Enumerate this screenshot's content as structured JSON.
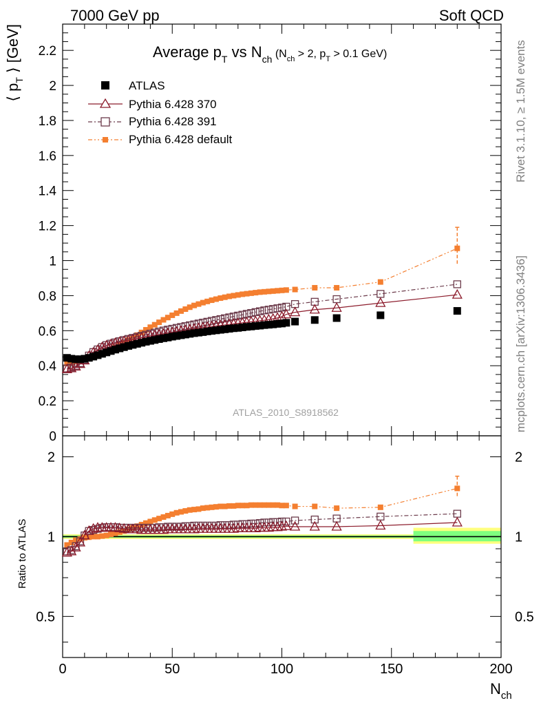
{
  "header": {
    "energy": "7000 GeV pp",
    "category": "Soft QCD"
  },
  "side": {
    "rivet": "Rivet 3.1.10, ≥ 1.5M events",
    "mcplots": "mcplots.cern.ch [arXiv:1306.3436]"
  },
  "watermark": "ATLAS_2010_S8918562",
  "chart_data": [
    {
      "type": "scatter",
      "title": "Average pT vs Nch (Nch > 2, pT > 0.1 GeV)",
      "title_parts": {
        "main": "Average p",
        "sub1": "T",
        "vs": " vs N",
        "sub2": "ch",
        "cond_open": " (N",
        "cond_sub1": "ch",
        "cond_mid": " > 2, p",
        "cond_sub2": "T",
        "cond_close": " > 0.1 GeV)"
      },
      "ylabel": "⟨ pT ⟩ [GeV]",
      "ylabel_parts": {
        "open": "⟨ p",
        "sub": "T",
        "close": " ⟩ [GeV]"
      },
      "xlim": [
        0,
        200
      ],
      "ylim": [
        0,
        2.35
      ],
      "yticks": [
        "0",
        "0.2",
        "0.4",
        "0.6",
        "0.8",
        "1",
        "1.2",
        "1.4",
        "1.6",
        "1.8",
        "2",
        "2.2"
      ],
      "legend_position": "top-left",
      "series": [
        {
          "name": "ATLAS",
          "color": "#000000",
          "marker": "filled-square",
          "x": [
            2,
            4,
            6,
            8,
            10,
            12,
            14,
            16,
            18,
            20,
            22,
            24,
            26,
            28,
            30,
            32,
            34,
            36,
            38,
            40,
            42,
            44,
            46,
            48,
            50,
            52,
            54,
            56,
            58,
            60,
            62,
            64,
            66,
            68,
            70,
            72,
            74,
            76,
            78,
            80,
            82,
            84,
            86,
            88,
            90,
            92,
            94,
            96,
            98,
            100,
            102,
            106,
            115,
            125,
            145,
            180
          ],
          "y": [
            0.445,
            0.44,
            0.437,
            0.437,
            0.44,
            0.445,
            0.452,
            0.46,
            0.468,
            0.476,
            0.484,
            0.492,
            0.499,
            0.506,
            0.513,
            0.519,
            0.525,
            0.531,
            0.537,
            0.542,
            0.547,
            0.552,
            0.557,
            0.561,
            0.566,
            0.57,
            0.574,
            0.578,
            0.582,
            0.586,
            0.589,
            0.592,
            0.596,
            0.599,
            0.602,
            0.605,
            0.608,
            0.611,
            0.614,
            0.616,
            0.619,
            0.622,
            0.624,
            0.627,
            0.629,
            0.632,
            0.634,
            0.636,
            0.639,
            0.641,
            0.645,
            0.652,
            0.661,
            0.672,
            0.688,
            0.713
          ]
        },
        {
          "name": "Pythia 6.428 370",
          "color": "#8b1a2a",
          "marker": "open-triangle",
          "line": "solid",
          "x": [
            2,
            4,
            6,
            8,
            10,
            12,
            14,
            16,
            18,
            20,
            22,
            24,
            26,
            28,
            30,
            32,
            34,
            36,
            38,
            40,
            42,
            44,
            46,
            48,
            50,
            52,
            54,
            56,
            58,
            60,
            62,
            64,
            66,
            68,
            70,
            72,
            74,
            76,
            78,
            80,
            82,
            84,
            86,
            88,
            90,
            92,
            94,
            96,
            98,
            100,
            102,
            106,
            115,
            125,
            145,
            180
          ],
          "y": [
            0.38,
            0.385,
            0.395,
            0.41,
            0.43,
            0.455,
            0.475,
            0.49,
            0.505,
            0.515,
            0.522,
            0.529,
            0.535,
            0.54,
            0.545,
            0.55,
            0.555,
            0.56,
            0.565,
            0.57,
            0.574,
            0.578,
            0.582,
            0.586,
            0.59,
            0.594,
            0.598,
            0.602,
            0.606,
            0.61,
            0.614,
            0.618,
            0.621,
            0.624,
            0.627,
            0.63,
            0.633,
            0.636,
            0.639,
            0.642,
            0.645,
            0.648,
            0.651,
            0.654,
            0.657,
            0.66,
            0.664,
            0.668,
            0.673,
            0.68,
            0.693,
            0.705,
            0.72,
            0.73,
            0.758,
            0.805
          ]
        },
        {
          "name": "Pythia 6.428 391",
          "color": "#6b3a4a",
          "marker": "open-square",
          "line": "dash-dot",
          "x": [
            2,
            4,
            6,
            8,
            10,
            12,
            14,
            16,
            18,
            20,
            22,
            24,
            26,
            28,
            30,
            32,
            34,
            36,
            38,
            40,
            42,
            44,
            46,
            48,
            50,
            52,
            54,
            56,
            58,
            60,
            62,
            64,
            66,
            68,
            70,
            72,
            74,
            76,
            78,
            80,
            82,
            84,
            86,
            88,
            90,
            92,
            94,
            96,
            98,
            100,
            102,
            106,
            115,
            125,
            145,
            180
          ],
          "y": [
            0.385,
            0.39,
            0.4,
            0.415,
            0.435,
            0.458,
            0.478,
            0.493,
            0.507,
            0.518,
            0.526,
            0.533,
            0.54,
            0.547,
            0.553,
            0.559,
            0.565,
            0.571,
            0.577,
            0.583,
            0.589,
            0.595,
            0.601,
            0.606,
            0.611,
            0.616,
            0.621,
            0.626,
            0.631,
            0.636,
            0.641,
            0.646,
            0.651,
            0.656,
            0.661,
            0.666,
            0.671,
            0.676,
            0.681,
            0.686,
            0.691,
            0.696,
            0.701,
            0.706,
            0.711,
            0.716,
            0.72,
            0.724,
            0.728,
            0.732,
            0.737,
            0.752,
            0.765,
            0.78,
            0.81,
            0.865
          ]
        },
        {
          "name": "Pythia 6.428 default",
          "color": "#f47f30",
          "marker": "filled-small-square",
          "line": "dash-dot-dot",
          "x": [
            2,
            4,
            6,
            8,
            10,
            12,
            14,
            16,
            18,
            20,
            22,
            24,
            26,
            28,
            30,
            32,
            34,
            36,
            38,
            40,
            42,
            44,
            46,
            48,
            50,
            52,
            54,
            56,
            58,
            60,
            62,
            64,
            66,
            68,
            70,
            72,
            74,
            76,
            78,
            80,
            82,
            84,
            86,
            88,
            90,
            92,
            94,
            96,
            98,
            100,
            102,
            106,
            115,
            125,
            145,
            180
          ],
          "y": [
            0.415,
            0.42,
            0.425,
            0.428,
            0.435,
            0.442,
            0.45,
            0.46,
            0.47,
            0.48,
            0.492,
            0.505,
            0.518,
            0.532,
            0.546,
            0.56,
            0.575,
            0.59,
            0.605,
            0.62,
            0.634,
            0.648,
            0.662,
            0.675,
            0.688,
            0.7,
            0.712,
            0.723,
            0.734,
            0.744,
            0.752,
            0.76,
            0.767,
            0.774,
            0.78,
            0.786,
            0.791,
            0.796,
            0.8,
            0.804,
            0.808,
            0.811,
            0.814,
            0.817,
            0.82,
            0.822,
            0.824,
            0.826,
            0.828,
            0.83,
            0.832,
            0.835,
            0.845,
            0.845,
            0.878,
            1.07
          ],
          "err_hi": 0.12
        }
      ]
    },
    {
      "type": "scatter",
      "ylabel": "Ratio to ATLAS",
      "xlabel": "Nch",
      "xlabel_parts": {
        "main": "N",
        "sub": "ch"
      },
      "xlim": [
        0,
        200
      ],
      "ylim": [
        0.35,
        2.4
      ],
      "xticks": [
        "0",
        "50",
        "100",
        "150",
        "200"
      ],
      "yticks": [
        {
          "value": 0.5,
          "label": "0.5"
        },
        {
          "value": 1,
          "label": "1"
        },
        {
          "value": 2,
          "label": "2"
        }
      ],
      "band_color_inner": "#7fff7f",
      "band_color_outer": "#ffff7f",
      "series": [
        {
          "name": "Pythia 6.428 370",
          "color": "#8b1a2a",
          "x": [
            2,
            4,
            6,
            8,
            10,
            12,
            14,
            16,
            18,
            20,
            22,
            24,
            26,
            28,
            30,
            32,
            34,
            36,
            38,
            40,
            42,
            44,
            46,
            48,
            50,
            52,
            54,
            56,
            58,
            60,
            62,
            64,
            66,
            68,
            70,
            72,
            74,
            76,
            78,
            80,
            82,
            84,
            86,
            88,
            90,
            92,
            94,
            96,
            98,
            100,
            102,
            106,
            115,
            125,
            145,
            180
          ],
          "y": [
            0.87,
            0.88,
            0.91,
            0.95,
            1.01,
            1.05,
            1.07,
            1.08,
            1.08,
            1.08,
            1.08,
            1.08,
            1.075,
            1.07,
            1.065,
            1.065,
            1.065,
            1.06,
            1.06,
            1.06,
            1.06,
            1.06,
            1.06,
            1.065,
            1.065,
            1.065,
            1.065,
            1.065,
            1.065,
            1.065,
            1.07,
            1.07,
            1.07,
            1.07,
            1.07,
            1.07,
            1.07,
            1.07,
            1.07,
            1.075,
            1.075,
            1.075,
            1.075,
            1.075,
            1.08,
            1.08,
            1.08,
            1.085,
            1.085,
            1.09,
            1.095,
            1.09,
            1.09,
            1.09,
            1.1,
            1.13
          ]
        },
        {
          "name": "Pythia 6.428 391",
          "color": "#6b3a4a",
          "x": [
            2,
            4,
            6,
            8,
            10,
            12,
            14,
            16,
            18,
            20,
            22,
            24,
            26,
            28,
            30,
            32,
            34,
            36,
            38,
            40,
            42,
            44,
            46,
            48,
            50,
            52,
            54,
            56,
            58,
            60,
            62,
            64,
            66,
            68,
            70,
            72,
            74,
            76,
            78,
            80,
            82,
            84,
            86,
            88,
            90,
            92,
            94,
            96,
            98,
            100,
            102,
            106,
            115,
            125,
            145,
            180
          ],
          "y": [
            0.88,
            0.89,
            0.92,
            0.96,
            1.01,
            1.05,
            1.06,
            1.07,
            1.08,
            1.085,
            1.085,
            1.085,
            1.08,
            1.08,
            1.08,
            1.08,
            1.08,
            1.08,
            1.08,
            1.08,
            1.08,
            1.085,
            1.085,
            1.09,
            1.09,
            1.09,
            1.09,
            1.095,
            1.095,
            1.1,
            1.1,
            1.1,
            1.1,
            1.1,
            1.1,
            1.105,
            1.105,
            1.105,
            1.11,
            1.11,
            1.115,
            1.115,
            1.12,
            1.12,
            1.125,
            1.13,
            1.13,
            1.135,
            1.135,
            1.14,
            1.14,
            1.15,
            1.16,
            1.17,
            1.19,
            1.22
          ]
        },
        {
          "name": "Pythia 6.428 default",
          "color": "#f47f30",
          "x": [
            2,
            4,
            6,
            8,
            10,
            12,
            14,
            16,
            18,
            20,
            22,
            24,
            26,
            28,
            30,
            32,
            34,
            36,
            38,
            40,
            42,
            44,
            46,
            48,
            50,
            52,
            54,
            56,
            58,
            60,
            62,
            64,
            66,
            68,
            70,
            72,
            74,
            76,
            78,
            80,
            82,
            84,
            86,
            88,
            90,
            92,
            94,
            96,
            98,
            100,
            102,
            106,
            115,
            125,
            145,
            180
          ],
          "y": [
            0.93,
            0.95,
            0.97,
            0.98,
            0.99,
            0.995,
            1.0,
            1.0,
            1.005,
            1.01,
            1.02,
            1.03,
            1.04,
            1.05,
            1.065,
            1.08,
            1.095,
            1.11,
            1.125,
            1.14,
            1.155,
            1.17,
            1.185,
            1.2,
            1.215,
            1.23,
            1.24,
            1.25,
            1.26,
            1.265,
            1.27,
            1.28,
            1.285,
            1.29,
            1.295,
            1.3,
            1.3,
            1.305,
            1.305,
            1.31,
            1.31,
            1.31,
            1.315,
            1.315,
            1.315,
            1.315,
            1.315,
            1.315,
            1.315,
            1.31,
            1.31,
            1.3,
            1.3,
            1.28,
            1.29,
            1.52
          ],
          "err_hi": 0.17
        }
      ]
    }
  ]
}
